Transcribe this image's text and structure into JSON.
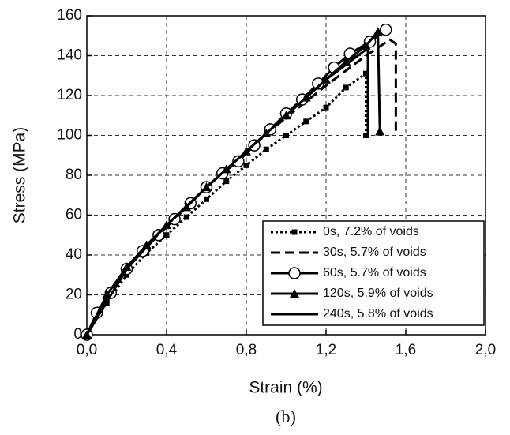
{
  "chart_data": {
    "type": "line",
    "caption": "(b)",
    "x_label": "Strain (%)",
    "y_label": "Stress (MPa)",
    "xlim": [
      0,
      2
    ],
    "ylim": [
      0,
      160
    ],
    "xticks": [
      {
        "value": 0,
        "label": "0,0"
      },
      {
        "value": 0.4,
        "label": "0,4"
      },
      {
        "value": 0.8,
        "label": "0,8"
      },
      {
        "value": 1.2,
        "label": "1,2"
      },
      {
        "value": 1.6,
        "label": "1,6"
      },
      {
        "value": 2,
        "label": "2,0"
      }
    ],
    "yticks": [
      0,
      20,
      40,
      60,
      80,
      100,
      120,
      140,
      160
    ],
    "grid": true,
    "legend": "lower right",
    "series": [
      {
        "name": "0s, 7.2% of voids",
        "color": "#000000",
        "marker": "square",
        "dash": "dotted",
        "x": [
          0,
          0.1,
          0.2,
          0.3,
          0.4,
          0.5,
          0.6,
          0.7,
          0.8,
          0.9,
          1.0,
          1.1,
          1.2,
          1.3,
          1.4,
          1.4
        ],
        "values": [
          0,
          16,
          30,
          41,
          50,
          59,
          68,
          77,
          85,
          93,
          100,
          107,
          114,
          124,
          131,
          100
        ]
      },
      {
        "name": "30s, 5.7% of voids",
        "color": "#000000",
        "marker": "none",
        "dash": "dashed",
        "x": [
          0,
          0.2,
          0.4,
          0.6,
          0.8,
          1.0,
          1.2,
          1.4,
          1.52,
          1.55,
          1.55
        ],
        "values": [
          0,
          33,
          55,
          74,
          92,
          109,
          125,
          140,
          148,
          146,
          100
        ]
      },
      {
        "name": "60s, 5.7% of voids",
        "color": "#000000",
        "marker": "circle",
        "dash": "solid",
        "x": [
          0,
          0.05,
          0.12,
          0.2,
          0.28,
          0.36,
          0.44,
          0.52,
          0.6,
          0.68,
          0.76,
          0.84,
          0.92,
          1.0,
          1.08,
          1.16,
          1.24,
          1.32,
          1.42,
          1.5
        ],
        "values": [
          0,
          11,
          21,
          33,
          42,
          50,
          58,
          66,
          74,
          81,
          87,
          95,
          103,
          111,
          118,
          126,
          134,
          141,
          147,
          153
        ]
      },
      {
        "name": "120s, 5.9% of voids",
        "color": "#000000",
        "marker": "triangle",
        "dash": "solid",
        "x": [
          0,
          0.1,
          0.2,
          0.3,
          0.4,
          0.5,
          0.6,
          0.7,
          0.8,
          0.9,
          1.0,
          1.1,
          1.2,
          1.3,
          1.4,
          1.46,
          1.47
        ],
        "values": [
          0,
          20,
          34,
          45,
          55,
          64,
          74,
          83,
          92,
          101,
          110,
          119,
          128,
          137,
          145,
          152,
          102
        ]
      },
      {
        "name": "240s, 5.8% of voids",
        "color": "#000000",
        "marker": "none",
        "dash": "solid",
        "x": [
          0,
          0.2,
          0.4,
          0.6,
          0.8,
          1.0,
          1.2,
          1.4,
          1.41,
          1.41
        ],
        "values": [
          0,
          33,
          55,
          74,
          92,
          110,
          128,
          143,
          144,
          100
        ]
      }
    ]
  }
}
